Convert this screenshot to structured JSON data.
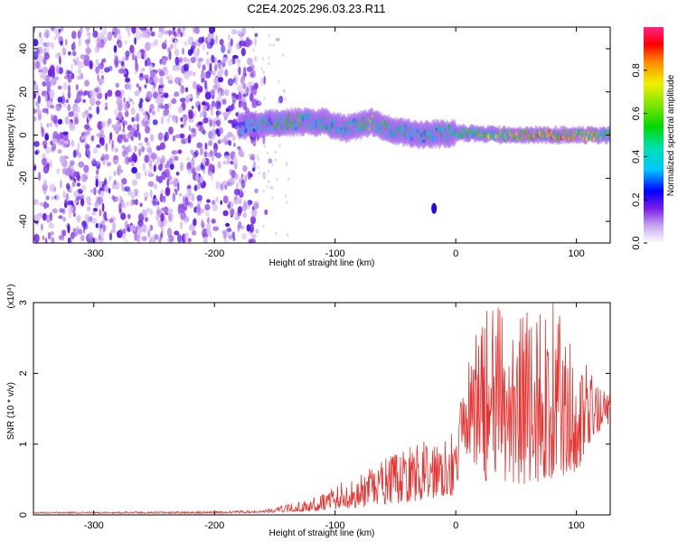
{
  "title": "C2E4.2025.296.03.23.R11",
  "chart_data": [
    {
      "type": "heatmap",
      "title": "C2E4.2025.296.03.23.R11",
      "xlabel": "Height of straight line (km)",
      "ylabel": "Frequency (Hz)",
      "xlim": [
        -350,
        128
      ],
      "ylim": [
        -50,
        50
      ],
      "xticks": [
        -300,
        -200,
        -100,
        0,
        100
      ],
      "yticks": [
        -40,
        -20,
        0,
        20,
        40
      ],
      "colorbar": {
        "label": "Normalized spectral amplitude",
        "range": [
          0,
          1
        ],
        "ticks": [
          0.0,
          0.2,
          0.4,
          0.6,
          0.8
        ],
        "tick_labels": [
          "0.0",
          "0.2",
          "0.4",
          "0.6",
          "0.8"
        ]
      },
      "features": {
        "noise_region_x": [
          -350,
          -165
        ],
        "ridge": [
          {
            "x": -180,
            "freq": 4,
            "amp": 0.35
          },
          {
            "x": -140,
            "freq": 6,
            "amp": 0.55
          },
          {
            "x": -110,
            "freq": 6,
            "amp": 0.5
          },
          {
            "x": -90,
            "freq": 3,
            "amp": 0.45
          },
          {
            "x": -70,
            "freq": 6,
            "amp": 0.6
          },
          {
            "x": -50,
            "freq": 2,
            "amp": 0.55
          },
          {
            "x": -30,
            "freq": 0,
            "amp": 0.45
          },
          {
            "x": 0,
            "freq": 1,
            "amp": 0.5
          },
          {
            "x": 40,
            "freq": 0,
            "amp": 0.7
          },
          {
            "x": 80,
            "freq": 0,
            "amp": 0.85
          },
          {
            "x": 128,
            "freq": 0,
            "amp": 0.6
          }
        ],
        "isolated_blob": {
          "x": -18,
          "freq": -34
        }
      }
    },
    {
      "type": "line",
      "xlabel": "Height of straight line (km)",
      "ylabel": "SNR (10 * v/v)",
      "y_scale_label": "(x10⁴)",
      "xlim": [
        -350,
        128
      ],
      "ylim": [
        0,
        3
      ],
      "xticks": [
        -300,
        -200,
        -100,
        0,
        100
      ],
      "yticks": [
        0,
        1,
        2,
        3
      ],
      "color": "#e8322f",
      "envelope": {
        "x": [
          -350,
          -200,
          -160,
          -120,
          -100,
          -80,
          -60,
          -40,
          -20,
          -5,
          0,
          5,
          20,
          40,
          60,
          80,
          100,
          115,
          128
        ],
        "lower": [
          0.02,
          0.02,
          0.03,
          0.05,
          0.08,
          0.1,
          0.14,
          0.18,
          0.22,
          0.3,
          0.2,
          1.0,
          0.5,
          0.4,
          0.4,
          0.5,
          0.6,
          1.1,
          1.3
        ],
        "upper": [
          0.04,
          0.05,
          0.07,
          0.22,
          0.45,
          0.55,
          0.8,
          0.95,
          1.1,
          1.3,
          1.1,
          1.7,
          2.9,
          3.0,
          3.0,
          3.05,
          2.4,
          1.9,
          1.7
        ]
      }
    }
  ]
}
